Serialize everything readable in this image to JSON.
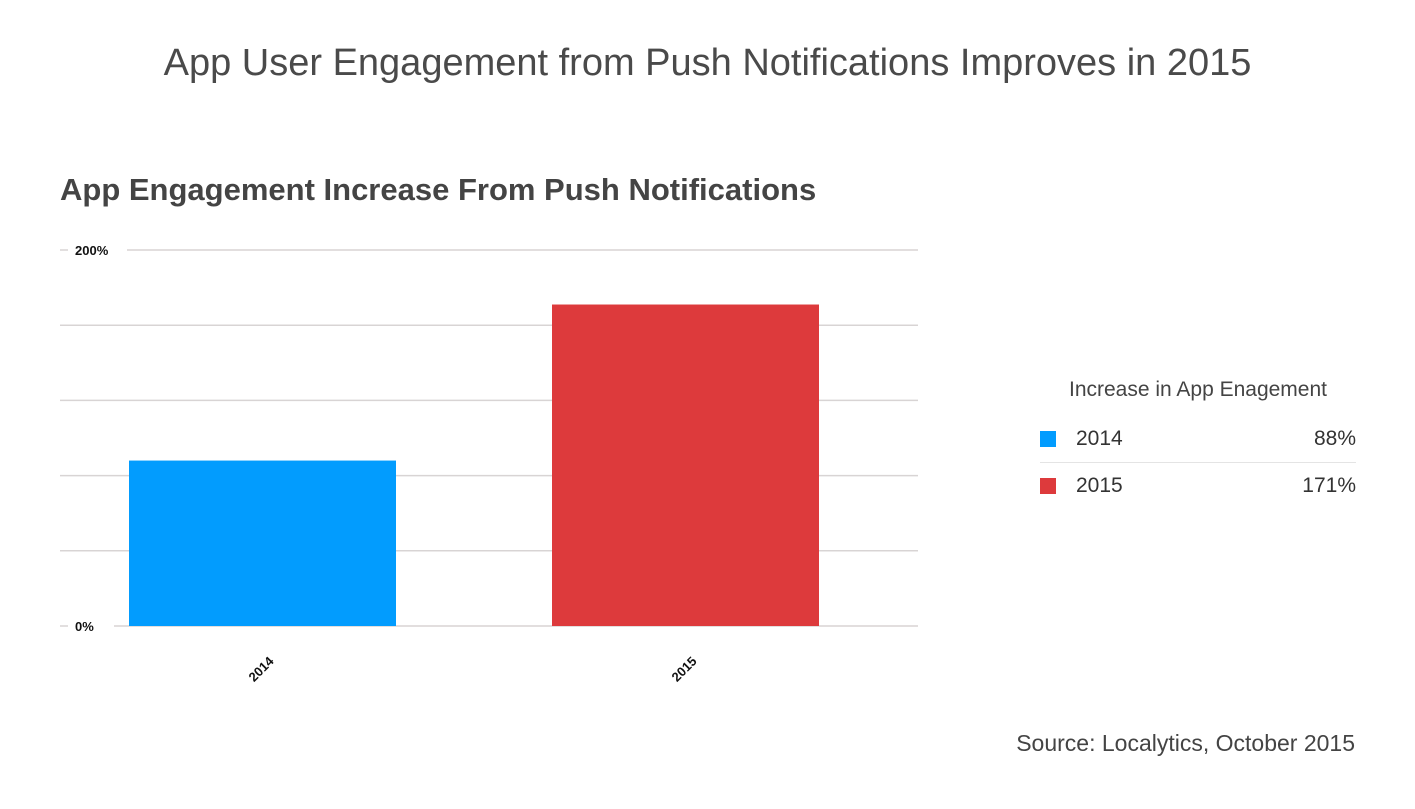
{
  "main_title": "App User Engagement from Push Notifications Improves in 2015",
  "source": "Source: Localytics, October 2015",
  "chart_data": {
    "type": "bar",
    "title": "App Engagement Increase From Push Notifications",
    "categories": [
      "2014",
      "2015"
    ],
    "values": [
      88,
      171
    ],
    "colors": [
      "#029cfe",
      "#dd3a3c"
    ],
    "ylim": [
      0,
      200
    ],
    "yticks": [
      0,
      40,
      80,
      120,
      160,
      200
    ],
    "ytick_labels": {
      "0": "0%",
      "200": "200%"
    },
    "grid": true,
    "xlabel": "",
    "ylabel": "",
    "legend": {
      "placement": "right",
      "title": "Increase in App Enagement",
      "entries": [
        {
          "label": "2014",
          "value": "88%"
        },
        {
          "label": "2015",
          "value": "171%"
        }
      ]
    }
  }
}
